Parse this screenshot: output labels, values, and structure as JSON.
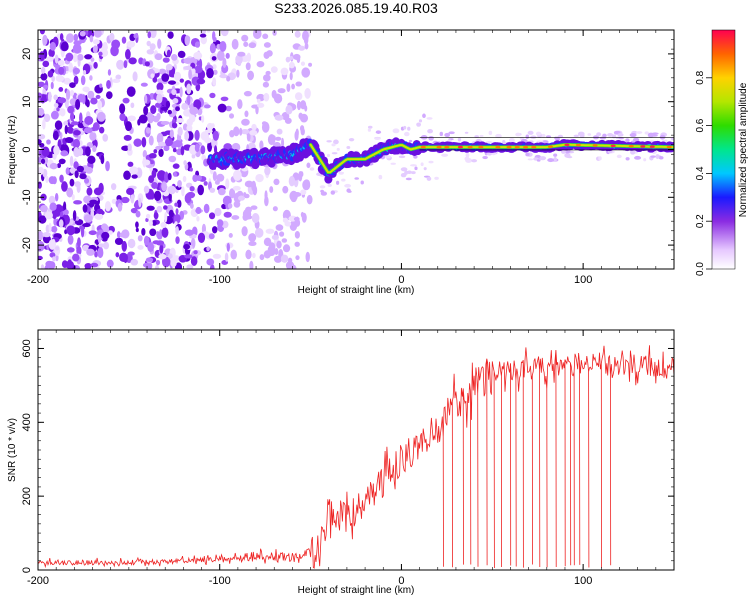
{
  "title": "S233.2026.085.19.40.R03",
  "chart_data": [
    {
      "type": "heatmap",
      "name": "spectrogram",
      "xlabel": "Height of straight line (km)",
      "ylabel": "Frequency (Hz)",
      "xlim": [
        -200,
        150
      ],
      "ylim": [
        -25,
        25
      ],
      "xticks": [
        -200,
        -100,
        0,
        100
      ],
      "yticks": [
        -20,
        -10,
        0,
        10,
        20
      ],
      "colorbar": {
        "label": "Normalized spectral amplitude",
        "range": [
          0,
          1
        ],
        "ticks": [
          "0.0",
          "0.2",
          "0.4",
          "0.6",
          "0.8"
        ]
      },
      "signal_path": [
        {
          "x": -100,
          "y": -2
        },
        {
          "x": -80,
          "y": -2
        },
        {
          "x": -70,
          "y": -1.5
        },
        {
          "x": -60,
          "y": -1
        },
        {
          "x": -50,
          "y": 1
        },
        {
          "x": -45,
          "y": -2
        },
        {
          "x": -40,
          "y": -5
        },
        {
          "x": -30,
          "y": -2
        },
        {
          "x": -20,
          "y": -2
        },
        {
          "x": -10,
          "y": 0
        },
        {
          "x": 0,
          "y": 1
        },
        {
          "x": 5,
          "y": 0
        },
        {
          "x": 10,
          "y": 0.5
        },
        {
          "x": 30,
          "y": 0.5
        },
        {
          "x": 80,
          "y": 0.5
        },
        {
          "x": 90,
          "y": 1
        },
        {
          "x": 150,
          "y": 0.5
        }
      ]
    },
    {
      "type": "line",
      "name": "snr",
      "xlabel": "Height of straight line (km)",
      "ylabel": "SNR (10 * v/v)",
      "xlim": [
        -200,
        150
      ],
      "ylim": [
        0,
        650
      ],
      "xticks": [
        -200,
        -100,
        0,
        100
      ],
      "yticks": [
        0,
        200,
        400,
        600
      ],
      "series": [
        {
          "name": "SNR",
          "color": "#ee2222",
          "trend": [
            {
              "x": -200,
              "y": 20
            },
            {
              "x": -150,
              "y": 20
            },
            {
              "x": -100,
              "y": 28
            },
            {
              "x": -80,
              "y": 38
            },
            {
              "x": -60,
              "y": 35
            },
            {
              "x": -45,
              "y": 60
            },
            {
              "x": -40,
              "y": 160
            },
            {
              "x": -30,
              "y": 140
            },
            {
              "x": -20,
              "y": 180
            },
            {
              "x": -10,
              "y": 240
            },
            {
              "x": 0,
              "y": 300
            },
            {
              "x": 10,
              "y": 340
            },
            {
              "x": 20,
              "y": 390
            },
            {
              "x": 30,
              "y": 440
            },
            {
              "x": 40,
              "y": 500
            },
            {
              "x": 50,
              "y": 535
            },
            {
              "x": 60,
              "y": 545
            },
            {
              "x": 80,
              "y": 550
            },
            {
              "x": 100,
              "y": 560
            },
            {
              "x": 120,
              "y": 555
            },
            {
              "x": 150,
              "y": 545
            }
          ],
          "dropouts_x": [
            23,
            28,
            34,
            38,
            42,
            47,
            51,
            55,
            60,
            63,
            67,
            72,
            76,
            80,
            85,
            90,
            93,
            95,
            98,
            103,
            110,
            115
          ]
        }
      ]
    }
  ]
}
